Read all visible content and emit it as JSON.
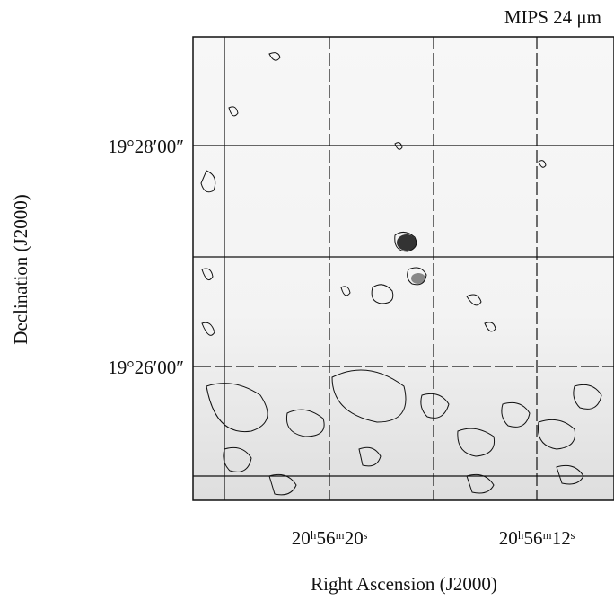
{
  "title": "MIPS 24 μm",
  "y_axis": {
    "label": "Declination (J2000)",
    "ticks": [
      "19°28′00″",
      "19°26′00″"
    ]
  },
  "x_axis": {
    "label": "Right Ascension (J2000)",
    "ticks": [
      "20ʰ56ᵐ20ˢ",
      "20ʰ56ᵐ12ˢ"
    ]
  }
}
